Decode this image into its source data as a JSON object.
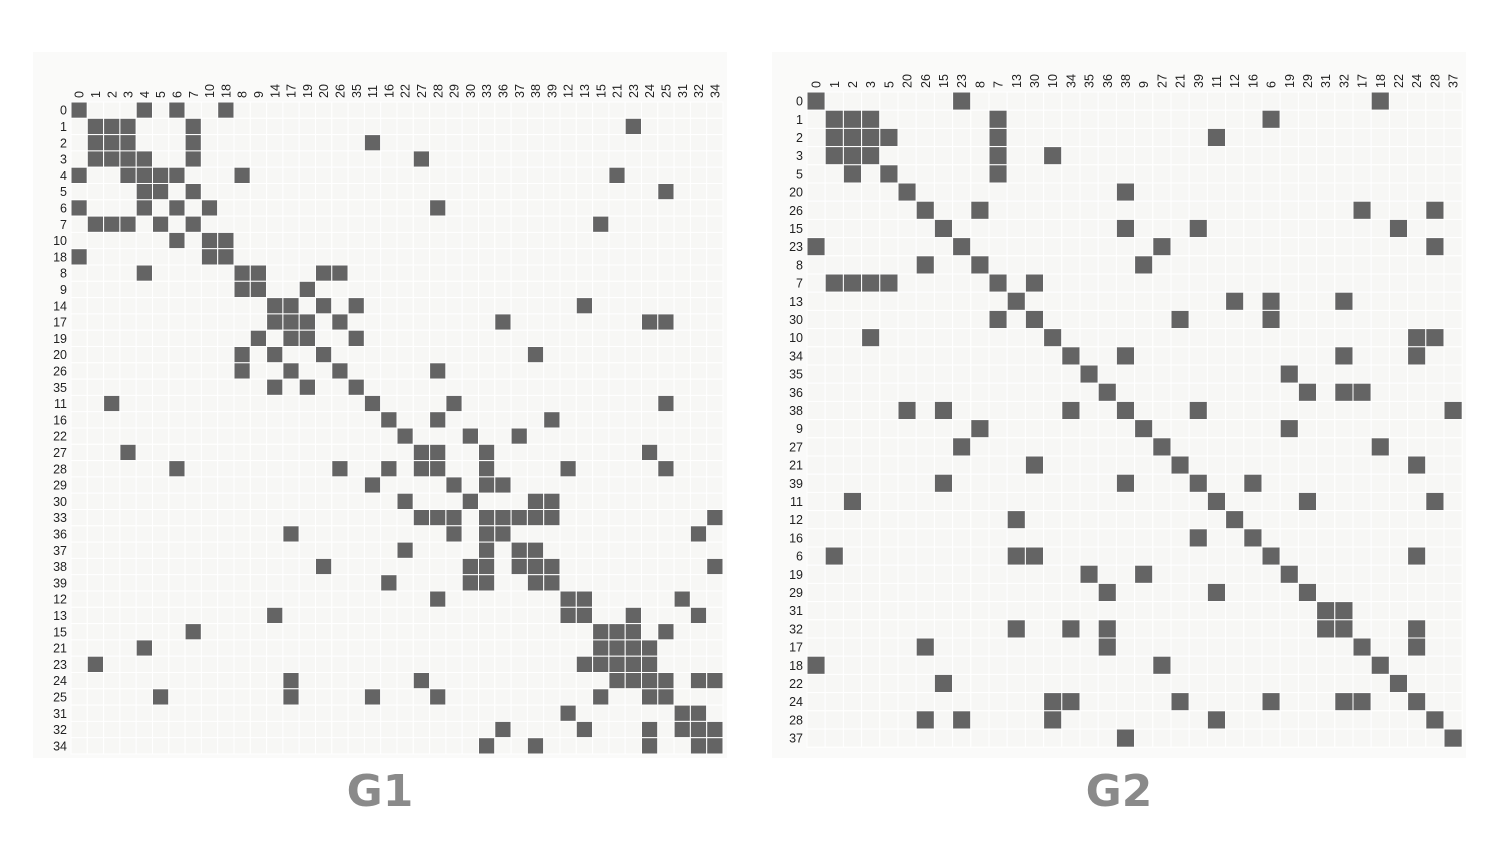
{
  "colors": {
    "cell_on": "#646464",
    "cell_off": "#f7f7f5",
    "grid": "#ffffff",
    "panel_bg": "#fafaf9",
    "caption": "#8a8a8a"
  },
  "chart_data": [
    {
      "type": "heatmap",
      "title": "G1",
      "order": [
        0,
        1,
        2,
        3,
        4,
        5,
        6,
        7,
        10,
        18,
        8,
        9,
        14,
        17,
        19,
        20,
        26,
        35,
        11,
        16,
        22,
        27,
        28,
        29,
        30,
        33,
        36,
        37,
        38,
        39,
        12,
        13,
        15,
        21,
        23,
        24,
        25,
        31,
        32,
        34
      ],
      "edges": [
        [
          0,
          4
        ],
        [
          0,
          6
        ],
        [
          0,
          18
        ],
        [
          1,
          2
        ],
        [
          1,
          3
        ],
        [
          1,
          7
        ],
        [
          1,
          23
        ],
        [
          2,
          3
        ],
        [
          2,
          7
        ],
        [
          2,
          11
        ],
        [
          3,
          4
        ],
        [
          3,
          7
        ],
        [
          3,
          27
        ],
        [
          4,
          5
        ],
        [
          4,
          6
        ],
        [
          4,
          8
        ],
        [
          4,
          21
        ],
        [
          5,
          7
        ],
        [
          5,
          25
        ],
        [
          6,
          10
        ],
        [
          6,
          28
        ],
        [
          7,
          15
        ],
        [
          10,
          18
        ],
        [
          8,
          9
        ],
        [
          8,
          20
        ],
        [
          8,
          26
        ],
        [
          9,
          19
        ],
        [
          14,
          17
        ],
        [
          14,
          20
        ],
        [
          14,
          35
        ],
        [
          14,
          13
        ],
        [
          17,
          19
        ],
        [
          17,
          26
        ],
        [
          17,
          36
        ],
        [
          17,
          24
        ],
        [
          17,
          25
        ],
        [
          19,
          35
        ],
        [
          20,
          38
        ],
        [
          26,
          28
        ],
        [
          11,
          29
        ],
        [
          11,
          25
        ],
        [
          16,
          28
        ],
        [
          16,
          39
        ],
        [
          22,
          30
        ],
        [
          22,
          37
        ],
        [
          27,
          28
        ],
        [
          27,
          33
        ],
        [
          27,
          24
        ],
        [
          28,
          33
        ],
        [
          28,
          12
        ],
        [
          28,
          25
        ],
        [
          29,
          33
        ],
        [
          29,
          36
        ],
        [
          30,
          38
        ],
        [
          30,
          39
        ],
        [
          33,
          36
        ],
        [
          33,
          37
        ],
        [
          33,
          38
        ],
        [
          33,
          39
        ],
        [
          33,
          34
        ],
        [
          36,
          32
        ],
        [
          37,
          38
        ],
        [
          38,
          39
        ],
        [
          38,
          34
        ],
        [
          12,
          13
        ],
        [
          12,
          31
        ],
        [
          13,
          23
        ],
        [
          13,
          32
        ],
        [
          15,
          21
        ],
        [
          15,
          23
        ],
        [
          15,
          25
        ],
        [
          21,
          23
        ],
        [
          21,
          24
        ],
        [
          23,
          24
        ],
        [
          24,
          25
        ],
        [
          24,
          32
        ],
        [
          24,
          34
        ],
        [
          31,
          32
        ],
        [
          32,
          34
        ]
      ],
      "diagonal": "filled"
    },
    {
      "type": "heatmap",
      "title": "G2",
      "order": [
        0,
        1,
        2,
        3,
        5,
        20,
        26,
        15,
        23,
        8,
        7,
        13,
        30,
        10,
        34,
        35,
        36,
        38,
        9,
        27,
        21,
        39,
        11,
        12,
        16,
        6,
        19,
        29,
        31,
        32,
        17,
        18,
        22,
        24,
        28,
        37
      ],
      "edges": [
        [
          0,
          23
        ],
        [
          0,
          18
        ],
        [
          1,
          2
        ],
        [
          1,
          3
        ],
        [
          1,
          7
        ],
        [
          1,
          6
        ],
        [
          2,
          3
        ],
        [
          2,
          5
        ],
        [
          2,
          7
        ],
        [
          2,
          11
        ],
        [
          3,
          7
        ],
        [
          3,
          10
        ],
        [
          5,
          7
        ],
        [
          20,
          38
        ],
        [
          26,
          8
        ],
        [
          26,
          17
        ],
        [
          26,
          28
        ],
        [
          15,
          38
        ],
        [
          15,
          39
        ],
        [
          15,
          22
        ],
        [
          23,
          27
        ],
        [
          23,
          28
        ],
        [
          8,
          9
        ],
        [
          7,
          30
        ],
        [
          13,
          12
        ],
        [
          13,
          6
        ],
        [
          13,
          32
        ],
        [
          30,
          21
        ],
        [
          30,
          6
        ],
        [
          10,
          24
        ],
        [
          10,
          28
        ],
        [
          34,
          38
        ],
        [
          34,
          32
        ],
        [
          34,
          24
        ],
        [
          35,
          19
        ],
        [
          36,
          29
        ],
        [
          36,
          32
        ],
        [
          36,
          17
        ],
        [
          38,
          39
        ],
        [
          38,
          37
        ],
        [
          9,
          19
        ],
        [
          27,
          18
        ],
        [
          21,
          24
        ],
        [
          39,
          16
        ],
        [
          11,
          29
        ],
        [
          11,
          28
        ],
        [
          6,
          24
        ],
        [
          31,
          32
        ],
        [
          32,
          24
        ],
        [
          17,
          24
        ]
      ],
      "diagonal": "filled"
    }
  ]
}
